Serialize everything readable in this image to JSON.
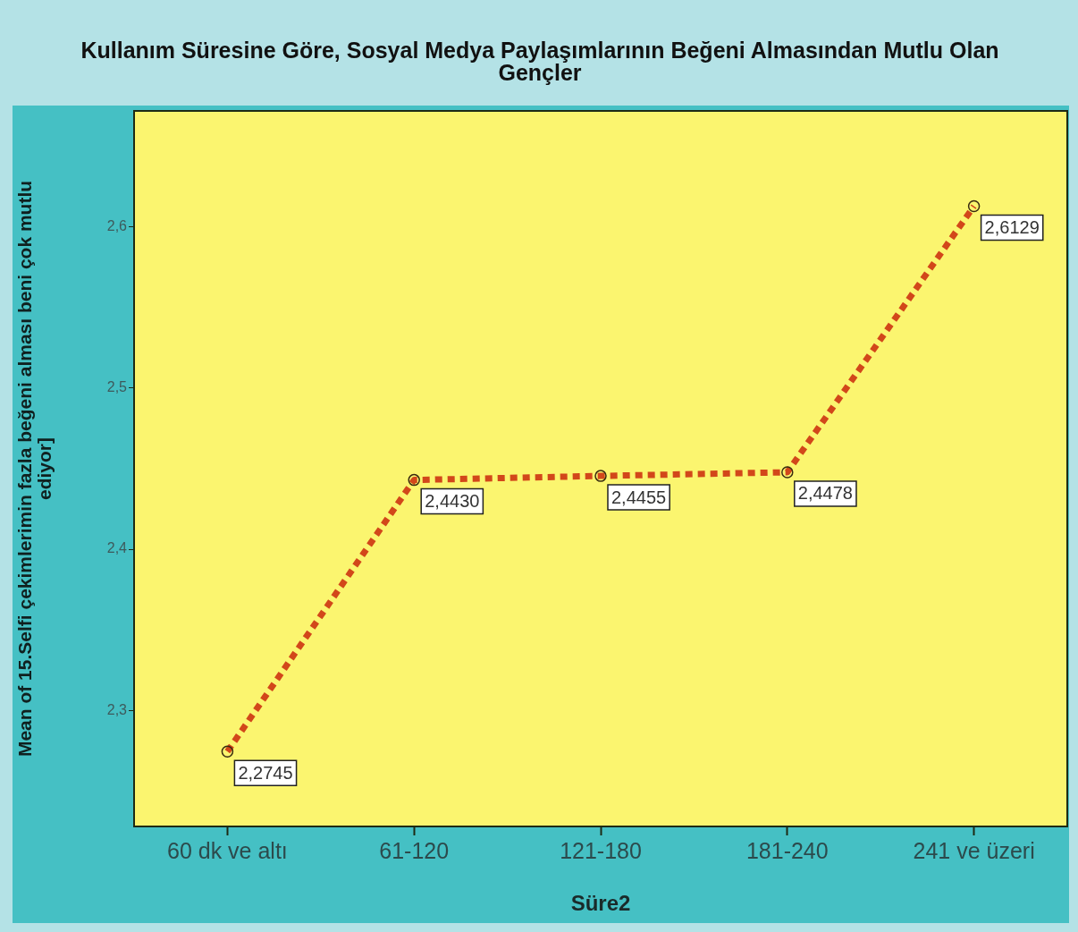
{
  "chart_data": {
    "type": "line",
    "title": "Kullanım Süresine Göre, Sosyal Medya Paylaşımlarının Beğeni Almasından Mutlu Olan Gençler",
    "xlabel": "Süre2",
    "ylabel": "Mean of 15.Selfi çekimlerimin fazla beğeni alması beni çok mutlu ediyor]",
    "categories": [
      "60 dk ve altı",
      "61-120",
      "121-180",
      "181-240",
      "241 ve üzeri"
    ],
    "series": [
      {
        "color": "#d2471a",
        "values": [
          2.2745,
          2.443,
          2.4455,
          2.4478,
          2.6129
        ],
        "value_labels": [
          "2,2745",
          "2,4430",
          "2,4455",
          "2,4478",
          "2,6129"
        ]
      }
    ],
    "ylim": [
      2.228,
      2.672
    ],
    "yticks": [
      {
        "value": 2.3,
        "label": "2,3"
      },
      {
        "value": 2.4,
        "label": "2,4"
      },
      {
        "value": 2.5,
        "label": "2,5"
      },
      {
        "value": 2.6,
        "label": "2,6"
      }
    ],
    "grid": false,
    "legend": false,
    "marker": "circle",
    "line_style": "dotted"
  }
}
